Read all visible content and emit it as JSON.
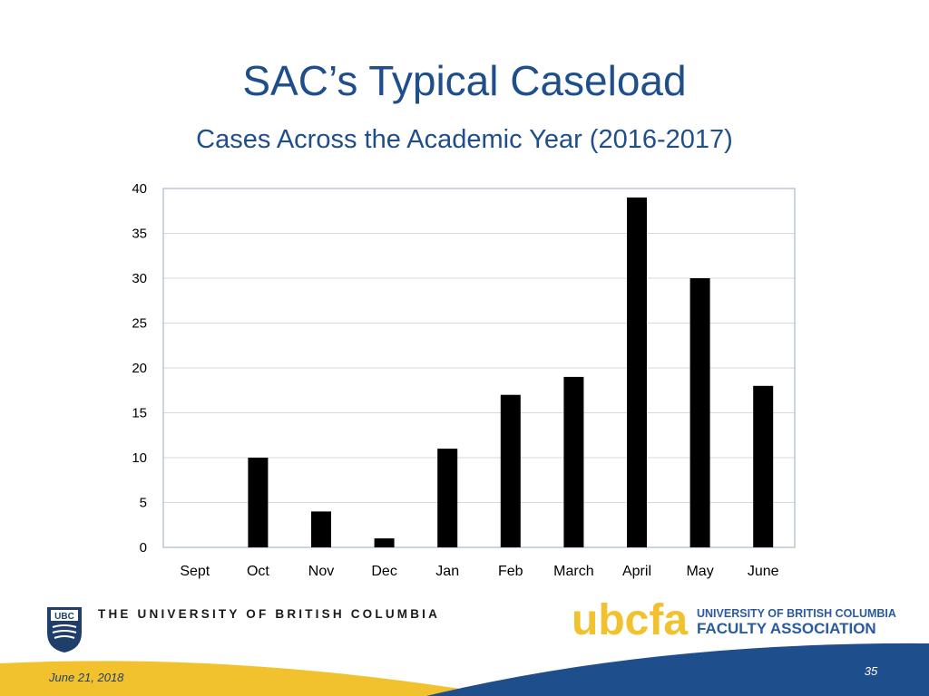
{
  "slide": {
    "title": "SAC’s Typical Caseload",
    "subtitle": "Cases Across the Academic Year (2016-2017)",
    "date": "June 21, 2018",
    "page_number": "35"
  },
  "branding": {
    "ubc_crest_text": "UBC",
    "ubc_name": "THE UNIVERSITY OF BRITISH COLUMBIA",
    "ubcfa_logo_text": "ubcfa",
    "fa_line1": "UNIVERSITY OF BRITISH COLUMBIA",
    "fa_line2": "FACULTY ASSOCIATION",
    "colors": {
      "navy": "#1f3f6a",
      "blue": "#2a5aa0",
      "gold": "#f2c12e"
    }
  },
  "chart_data": {
    "type": "bar",
    "title": "",
    "xlabel": "",
    "ylabel": "",
    "categories": [
      "Sept",
      "Oct",
      "Nov",
      "Dec",
      "Jan",
      "Feb",
      "March",
      "April",
      "May",
      "June"
    ],
    "values": [
      0,
      10,
      4,
      1,
      11,
      17,
      19,
      39,
      30,
      18
    ],
    "ylim": [
      0,
      40
    ],
    "yticks": [
      0,
      5,
      10,
      15,
      20,
      25,
      30,
      35,
      40
    ],
    "grid": true,
    "legend": "none",
    "bar_color": "#000000"
  }
}
